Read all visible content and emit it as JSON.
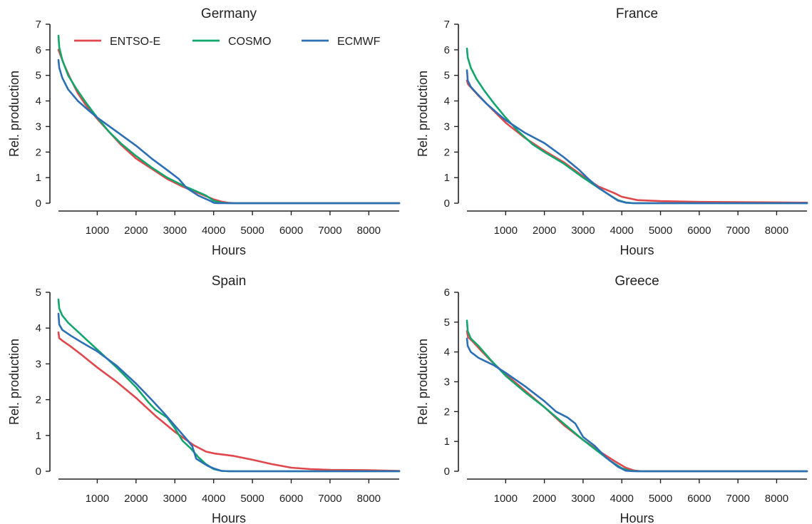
{
  "colors": {
    "ENTSO-E": "#e0474c",
    "COSMO": "#12a66c",
    "ECMWF": "#2c6fb5",
    "axis": "#222222"
  },
  "legend": {
    "placement": "top",
    "entries": [
      "ENTSO-E",
      "COSMO",
      "ECMWF"
    ]
  },
  "chart_data": [
    {
      "type": "line",
      "title": "Germany",
      "xlabel": "Hours",
      "ylabel": "Rel. production",
      "xlim": [
        0,
        8784
      ],
      "ylim": [
        0,
        7
      ],
      "xticks": [
        1000,
        2000,
        3000,
        4000,
        5000,
        6000,
        7000,
        8000
      ],
      "yticks": [
        0,
        1,
        2,
        3,
        4,
        5,
        6,
        7
      ],
      "grid": false,
      "series": [
        {
          "name": "ENTSO-E",
          "points": [
            [
              0,
              6.0
            ],
            [
              50,
              5.8
            ],
            [
              150,
              5.4
            ],
            [
              300,
              4.9
            ],
            [
              500,
              4.3
            ],
            [
              700,
              3.85
            ],
            [
              1000,
              3.3
            ],
            [
              1300,
              2.8
            ],
            [
              1600,
              2.3
            ],
            [
              2000,
              1.75
            ],
            [
              2400,
              1.35
            ],
            [
              2800,
              0.95
            ],
            [
              3200,
              0.65
            ],
            [
              3600,
              0.4
            ],
            [
              4000,
              0.15
            ],
            [
              4200,
              0.06
            ],
            [
              4400,
              0.01
            ],
            [
              4600,
              0
            ],
            [
              8784,
              0
            ]
          ]
        },
        {
          "name": "COSMO",
          "points": [
            [
              0,
              6.55
            ],
            [
              20,
              6.1
            ],
            [
              100,
              5.6
            ],
            [
              250,
              5.0
            ],
            [
              450,
              4.5
            ],
            [
              700,
              3.95
            ],
            [
              1000,
              3.35
            ],
            [
              1300,
              2.8
            ],
            [
              1600,
              2.35
            ],
            [
              2000,
              1.85
            ],
            [
              2400,
              1.4
            ],
            [
              2800,
              1.0
            ],
            [
              3200,
              0.7
            ],
            [
              3500,
              0.5
            ],
            [
              3800,
              0.3
            ],
            [
              4000,
              0.1
            ],
            [
              4200,
              0.02
            ],
            [
              4400,
              0
            ],
            [
              8784,
              0
            ]
          ]
        },
        {
          "name": "ECMWF",
          "points": [
            [
              0,
              5.6
            ],
            [
              20,
              5.3
            ],
            [
              100,
              4.9
            ],
            [
              250,
              4.45
            ],
            [
              500,
              4.0
            ],
            [
              800,
              3.6
            ],
            [
              1000,
              3.35
            ],
            [
              1500,
              2.8
            ],
            [
              2000,
              2.25
            ],
            [
              2400,
              1.75
            ],
            [
              2800,
              1.3
            ],
            [
              3100,
              0.95
            ],
            [
              3300,
              0.6
            ],
            [
              3600,
              0.3
            ],
            [
              3900,
              0.1
            ],
            [
              4000,
              0.02
            ],
            [
              4100,
              0
            ],
            [
              8784,
              0
            ]
          ]
        }
      ]
    },
    {
      "type": "line",
      "title": "France",
      "xlabel": "Hours",
      "ylabel": "Rel. production",
      "xlim": [
        0,
        8784
      ],
      "ylim": [
        0,
        7
      ],
      "xticks": [
        1000,
        2000,
        3000,
        4000,
        5000,
        6000,
        7000,
        8000
      ],
      "yticks": [
        0,
        1,
        2,
        3,
        4,
        5,
        6,
        7
      ],
      "grid": false,
      "series": [
        {
          "name": "ENTSO-E",
          "points": [
            [
              0,
              4.8
            ],
            [
              30,
              4.65
            ],
            [
              150,
              4.45
            ],
            [
              300,
              4.2
            ],
            [
              500,
              3.9
            ],
            [
              800,
              3.45
            ],
            [
              1000,
              3.15
            ],
            [
              1500,
              2.55
            ],
            [
              2000,
              2.05
            ],
            [
              2500,
              1.6
            ],
            [
              3000,
              1.05
            ],
            [
              3400,
              0.65
            ],
            [
              3800,
              0.4
            ],
            [
              4000,
              0.25
            ],
            [
              4400,
              0.12
            ],
            [
              5000,
              0.08
            ],
            [
              6000,
              0.05
            ],
            [
              7000,
              0.04
            ],
            [
              8000,
              0.03
            ],
            [
              8784,
              0.02
            ]
          ]
        },
        {
          "name": "COSMO",
          "points": [
            [
              0,
              6.05
            ],
            [
              20,
              5.7
            ],
            [
              100,
              5.3
            ],
            [
              250,
              4.85
            ],
            [
              450,
              4.4
            ],
            [
              700,
              3.9
            ],
            [
              1000,
              3.35
            ],
            [
              1300,
              2.85
            ],
            [
              1700,
              2.3
            ],
            [
              2000,
              2.0
            ],
            [
              2500,
              1.55
            ],
            [
              3000,
              1.0
            ],
            [
              3400,
              0.6
            ],
            [
              3700,
              0.3
            ],
            [
              3900,
              0.12
            ],
            [
              4100,
              0.03
            ],
            [
              4300,
              0
            ],
            [
              8784,
              0
            ]
          ]
        },
        {
          "name": "ECMWF",
          "points": [
            [
              0,
              5.2
            ],
            [
              20,
              4.8
            ],
            [
              100,
              4.55
            ],
            [
              250,
              4.3
            ],
            [
              500,
              3.9
            ],
            [
              800,
              3.5
            ],
            [
              1000,
              3.25
            ],
            [
              1500,
              2.75
            ],
            [
              2000,
              2.35
            ],
            [
              2500,
              1.8
            ],
            [
              2900,
              1.3
            ],
            [
              3100,
              1.0
            ],
            [
              3400,
              0.6
            ],
            [
              3700,
              0.3
            ],
            [
              3900,
              0.1
            ],
            [
              4100,
              0.02
            ],
            [
              4300,
              0
            ],
            [
              8784,
              0
            ]
          ]
        }
      ]
    },
    {
      "type": "line",
      "title": "Spain",
      "xlabel": "Hours",
      "ylabel": "Rel. production",
      "xlim": [
        0,
        8784
      ],
      "ylim": [
        0,
        5
      ],
      "xticks": [
        1000,
        2000,
        3000,
        4000,
        5000,
        6000,
        7000,
        8000
      ],
      "yticks": [
        0,
        1,
        2,
        3,
        4,
        5
      ],
      "grid": false,
      "series": [
        {
          "name": "ENTSO-E",
          "points": [
            [
              0,
              3.88
            ],
            [
              20,
              3.72
            ],
            [
              100,
              3.65
            ],
            [
              300,
              3.5
            ],
            [
              600,
              3.25
            ],
            [
              1000,
              2.9
            ],
            [
              1500,
              2.5
            ],
            [
              2000,
              2.05
            ],
            [
              2500,
              1.55
            ],
            [
              3000,
              1.1
            ],
            [
              3500,
              0.72
            ],
            [
              3800,
              0.55
            ],
            [
              4000,
              0.5
            ],
            [
              4500,
              0.43
            ],
            [
              5000,
              0.32
            ],
            [
              5500,
              0.2
            ],
            [
              6000,
              0.1
            ],
            [
              6500,
              0.06
            ],
            [
              7000,
              0.04
            ],
            [
              8000,
              0.03
            ],
            [
              8784,
              0.01
            ]
          ]
        },
        {
          "name": "COSMO",
          "points": [
            [
              0,
              4.8
            ],
            [
              20,
              4.55
            ],
            [
              100,
              4.35
            ],
            [
              250,
              4.15
            ],
            [
              500,
              3.9
            ],
            [
              800,
              3.6
            ],
            [
              1000,
              3.4
            ],
            [
              1500,
              2.9
            ],
            [
              2000,
              2.35
            ],
            [
              2300,
              1.95
            ],
            [
              2500,
              1.72
            ],
            [
              2800,
              1.5
            ],
            [
              3000,
              1.2
            ],
            [
              3200,
              0.85
            ],
            [
              3400,
              0.65
            ],
            [
              3600,
              0.4
            ],
            [
              3800,
              0.2
            ],
            [
              4000,
              0.06
            ],
            [
              4200,
              0.01
            ],
            [
              4400,
              0
            ],
            [
              8784,
              0
            ]
          ]
        },
        {
          "name": "ECMWF",
          "points": [
            [
              0,
              4.4
            ],
            [
              20,
              4.1
            ],
            [
              100,
              3.95
            ],
            [
              300,
              3.8
            ],
            [
              600,
              3.6
            ],
            [
              1000,
              3.35
            ],
            [
              1500,
              2.95
            ],
            [
              2000,
              2.45
            ],
            [
              2400,
              2.0
            ],
            [
              2700,
              1.65
            ],
            [
              2900,
              1.4
            ],
            [
              3100,
              1.15
            ],
            [
              3300,
              0.9
            ],
            [
              3450,
              0.7
            ],
            [
              3550,
              0.35
            ],
            [
              3700,
              0.25
            ],
            [
              3850,
              0.15
            ],
            [
              4000,
              0.08
            ],
            [
              4200,
              0.01
            ],
            [
              4400,
              0
            ],
            [
              8784,
              0
            ]
          ]
        }
      ]
    },
    {
      "type": "line",
      "title": "Greece",
      "xlabel": "Hours",
      "ylabel": "Rel. production",
      "xlim": [
        0,
        8784
      ],
      "ylim": [
        0,
        6
      ],
      "xticks": [
        1000,
        2000,
        3000,
        4000,
        5000,
        6000,
        7000,
        8000
      ],
      "yticks": [
        0,
        1,
        2,
        3,
        4,
        5,
        6
      ],
      "grid": false,
      "series": [
        {
          "name": "ENTSO-E",
          "points": [
            [
              0,
              4.7
            ],
            [
              30,
              4.5
            ],
            [
              150,
              4.35
            ],
            [
              400,
              4.0
            ],
            [
              700,
              3.6
            ],
            [
              1000,
              3.25
            ],
            [
              1500,
              2.7
            ],
            [
              2000,
              2.15
            ],
            [
              2500,
              1.55
            ],
            [
              3000,
              1.05
            ],
            [
              3500,
              0.6
            ],
            [
              3800,
              0.35
            ],
            [
              4100,
              0.12
            ],
            [
              4300,
              0.03
            ],
            [
              4500,
              0
            ],
            [
              8784,
              0
            ]
          ]
        },
        {
          "name": "COSMO",
          "points": [
            [
              0,
              5.05
            ],
            [
              20,
              4.7
            ],
            [
              100,
              4.45
            ],
            [
              300,
              4.2
            ],
            [
              600,
              3.75
            ],
            [
              1000,
              3.2
            ],
            [
              1500,
              2.65
            ],
            [
              2000,
              2.15
            ],
            [
              2500,
              1.6
            ],
            [
              3000,
              1.05
            ],
            [
              3400,
              0.65
            ],
            [
              3700,
              0.35
            ],
            [
              4000,
              0.1
            ],
            [
              4200,
              0.02
            ],
            [
              4400,
              0
            ],
            [
              8784,
              0
            ]
          ]
        },
        {
          "name": "ECMWF",
          "points": [
            [
              0,
              4.45
            ],
            [
              20,
              4.2
            ],
            [
              100,
              4.0
            ],
            [
              300,
              3.8
            ],
            [
              700,
              3.55
            ],
            [
              1000,
              3.3
            ],
            [
              1500,
              2.85
            ],
            [
              2000,
              2.35
            ],
            [
              2300,
              2.0
            ],
            [
              2600,
              1.8
            ],
            [
              2800,
              1.6
            ],
            [
              3000,
              1.15
            ],
            [
              3300,
              0.85
            ],
            [
              3600,
              0.45
            ],
            [
              3900,
              0.15
            ],
            [
              4100,
              0.02
            ],
            [
              4300,
              0
            ],
            [
              8784,
              0
            ]
          ]
        }
      ]
    }
  ]
}
